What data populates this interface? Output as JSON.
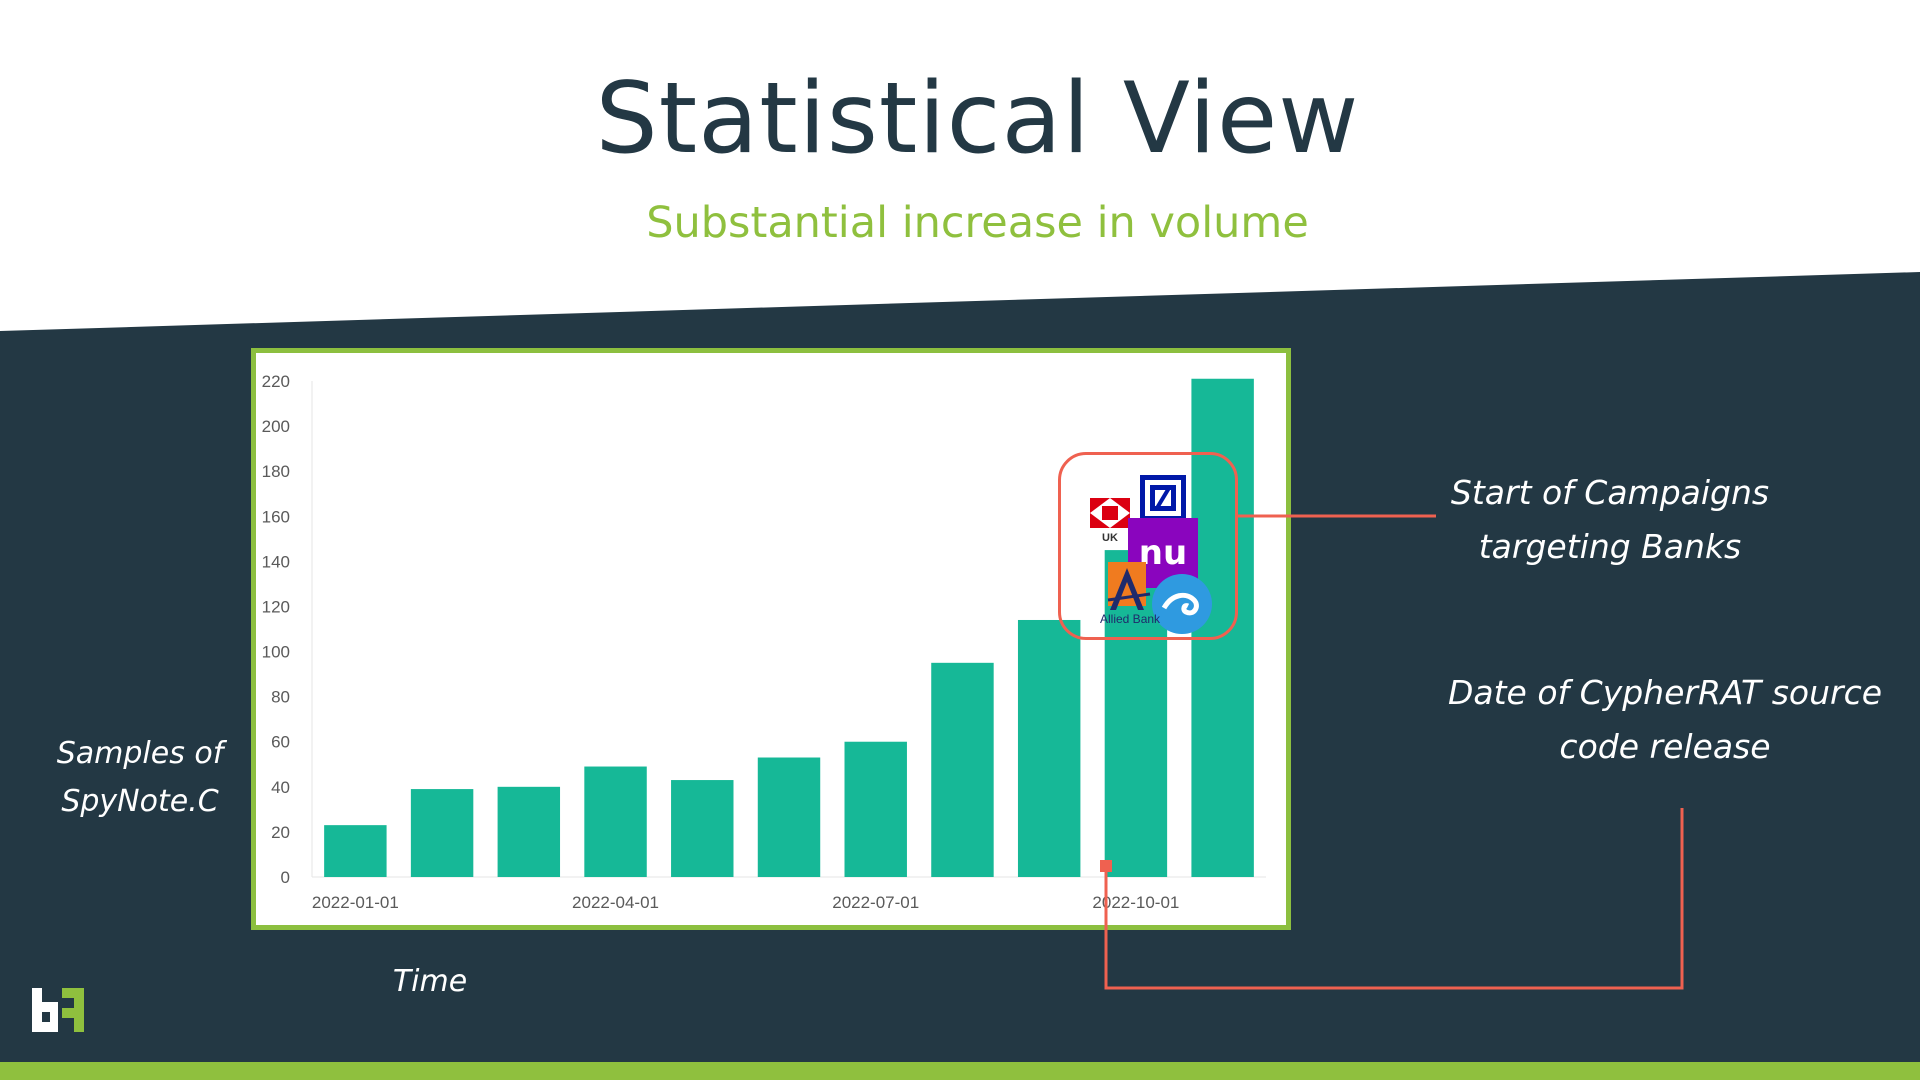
{
  "slide": {
    "title": "Statistical View",
    "subtitle": "Substantial increase in volume"
  },
  "annotations": {
    "campaign": [
      "Start of Campaigns",
      "targeting Banks"
    ],
    "cypher": [
      "Date of CypherRAT source",
      "code release"
    ],
    "y_label": [
      "Samples of",
      "SpyNote.C"
    ],
    "x_label": "Time"
  },
  "bank_logos": {
    "hsbc_text": "UK",
    "nu_text": "nu",
    "allied_text": "Allied Bank"
  },
  "colors": {
    "dark_bg": "#233844",
    "accent_green": "#8fc03e",
    "bar": "#16b897",
    "highlight_red": "#ef6150",
    "title": "#233844"
  },
  "chart_data": {
    "type": "bar",
    "x": [
      "2022-01-01",
      "2022-02-01",
      "2022-03-01",
      "2022-04-01",
      "2022-05-01",
      "2022-06-01",
      "2022-07-01",
      "2022-08-01",
      "2022-09-01",
      "2022-10-01",
      "2022-11-01"
    ],
    "x_tick_labels": [
      "2022-01-01",
      "2022-04-01",
      "2022-07-01",
      "2022-10-01"
    ],
    "values": [
      23,
      39,
      40,
      49,
      43,
      53,
      60,
      95,
      114,
      145,
      221
    ],
    "y_ticks": [
      0,
      20,
      40,
      60,
      80,
      100,
      120,
      140,
      160,
      180,
      200,
      220
    ],
    "ylim": [
      0,
      220
    ],
    "grid": false,
    "xlabel": "Time",
    "ylabel": "Samples of SpyNote.C",
    "markers": [
      {
        "date": "2022-10-01",
        "label": "Date of CypherRAT source code release"
      }
    ]
  }
}
